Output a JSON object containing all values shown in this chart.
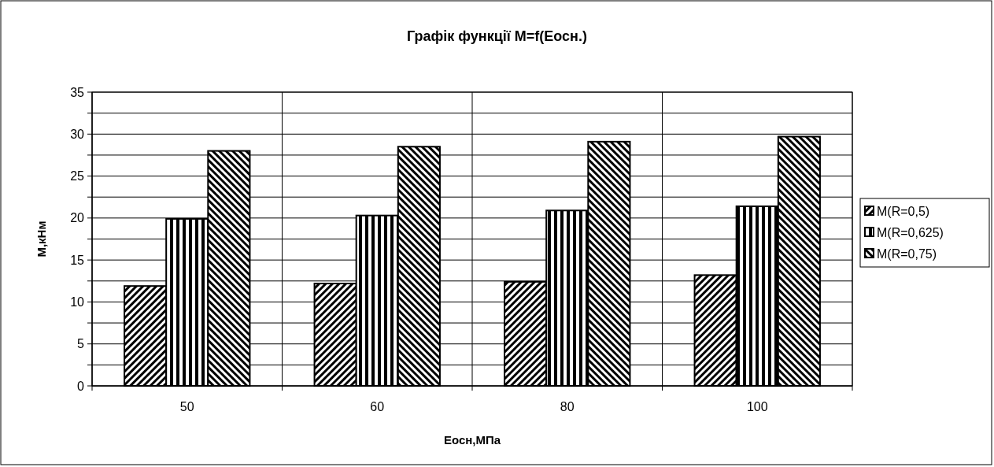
{
  "chart_data": {
    "type": "bar",
    "title": "Графік функції M=f(Eосн.)",
    "xlabel": "Eосн,МПа",
    "ylabel": "М,кНм",
    "categories": [
      "50",
      "60",
      "80",
      "100"
    ],
    "series": [
      {
        "name": "M(R=0,5)",
        "color": "#000000",
        "values": [
          11.9,
          12.2,
          12.4,
          13.2
        ]
      },
      {
        "name": "M(R=0,625)",
        "color": "#000000",
        "values": [
          19.9,
          20.3,
          20.9,
          21.4
        ]
      },
      {
        "name": "M(R=0,75)",
        "color": "#000000",
        "values": [
          28.0,
          28.5,
          29.1,
          29.7
        ]
      }
    ],
    "ylim": [
      0,
      35
    ],
    "yticks": [
      0,
      {
        "value": 2.5,
        "label": null
      },
      5,
      {
        "value": 7.5,
        "label": null
      },
      10,
      {
        "value": 12.5,
        "label": null
      },
      15,
      {
        "value": 17.5,
        "label": null
      },
      20,
      {
        "value": 22.5,
        "label": null
      },
      25,
      {
        "value": 27.5,
        "label": null
      },
      30,
      {
        "value": 32.5,
        "label": null
      },
      35
    ],
    "grid": true,
    "legend": "right"
  }
}
